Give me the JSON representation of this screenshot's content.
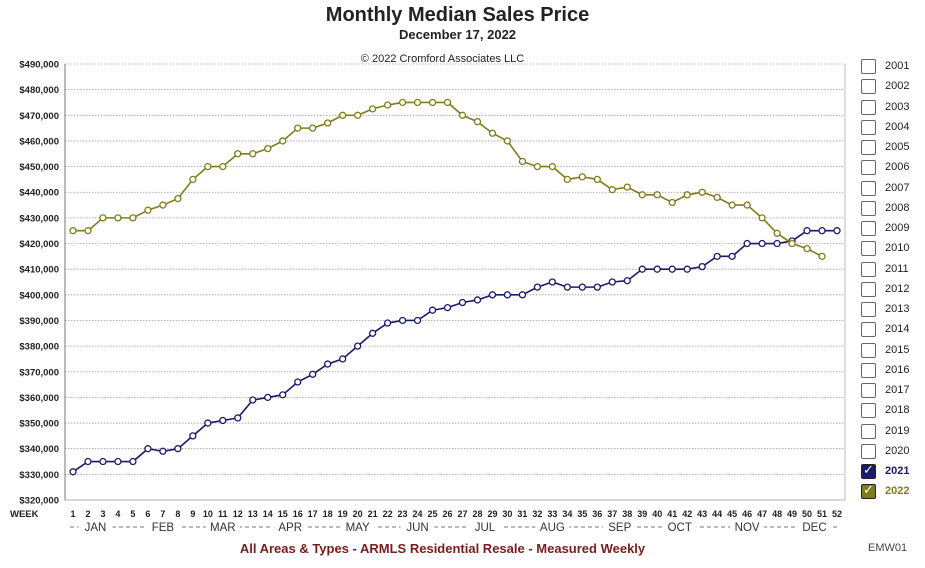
{
  "header": {
    "title": "Monthly Median Sales Price",
    "date": "December 17, 2022",
    "copyright": "© 2022 Cromford Associates LLC"
  },
  "footer": {
    "text": "All Areas & Types - ARMLS Residential Resale - Measured Weekly",
    "code": "EMW01"
  },
  "legend": {
    "items": [
      {
        "label": "2001",
        "checked": false
      },
      {
        "label": "2002",
        "checked": false
      },
      {
        "label": "2003",
        "checked": false
      },
      {
        "label": "2004",
        "checked": false
      },
      {
        "label": "2005",
        "checked": false
      },
      {
        "label": "2006",
        "checked": false
      },
      {
        "label": "2007",
        "checked": false
      },
      {
        "label": "2008",
        "checked": false
      },
      {
        "label": "2009",
        "checked": false
      },
      {
        "label": "2010",
        "checked": false
      },
      {
        "label": "2011",
        "checked": false
      },
      {
        "label": "2012",
        "checked": false
      },
      {
        "label": "2013",
        "checked": false
      },
      {
        "label": "2014",
        "checked": false
      },
      {
        "label": "2015",
        "checked": false
      },
      {
        "label": "2016",
        "checked": false
      },
      {
        "label": "2017",
        "checked": false
      },
      {
        "label": "2018",
        "checked": false
      },
      {
        "label": "2019",
        "checked": false
      },
      {
        "label": "2020",
        "checked": false
      },
      {
        "label": "2021",
        "checked": true,
        "color": "#1a1a6b"
      },
      {
        "label": "2022",
        "checked": true,
        "color": "#7d7d1a"
      }
    ]
  },
  "chart_data": {
    "type": "line",
    "title": "Monthly Median Sales Price",
    "subtitle": "December 17, 2022",
    "xlabel": "WEEK",
    "ylabel": "",
    "ylim": [
      320000,
      490000
    ],
    "yticks": [
      320000,
      330000,
      340000,
      350000,
      360000,
      370000,
      380000,
      390000,
      400000,
      410000,
      420000,
      430000,
      440000,
      450000,
      460000,
      470000,
      480000,
      490000
    ],
    "ytick_labels": [
      "$320,000",
      "$330,000",
      "$340,000",
      "$350,000",
      "$360,000",
      "$370,000",
      "$380,000",
      "$390,000",
      "$400,000",
      "$410,000",
      "$420,000",
      "$430,000",
      "$440,000",
      "$450,000",
      "$460,000",
      "$470,000",
      "$480,000",
      "$490,000"
    ],
    "x": [
      1,
      2,
      3,
      4,
      5,
      6,
      7,
      8,
      9,
      10,
      11,
      12,
      13,
      14,
      15,
      16,
      17,
      18,
      19,
      20,
      21,
      22,
      23,
      24,
      25,
      26,
      27,
      28,
      29,
      30,
      31,
      32,
      33,
      34,
      35,
      36,
      37,
      38,
      39,
      40,
      41,
      42,
      43,
      44,
      45,
      46,
      47,
      48,
      49,
      50,
      51,
      52
    ],
    "month_labels": [
      {
        "label": "JAN",
        "week": 2.5
      },
      {
        "label": "FEB",
        "week": 7
      },
      {
        "label": "MAR",
        "week": 11
      },
      {
        "label": "APR",
        "week": 15.5
      },
      {
        "label": "MAY",
        "week": 20
      },
      {
        "label": "JUN",
        "week": 24
      },
      {
        "label": "JUL",
        "week": 28.5
      },
      {
        "label": "AUG",
        "week": 33
      },
      {
        "label": "SEP",
        "week": 37.5
      },
      {
        "label": "OCT",
        "week": 41.5
      },
      {
        "label": "NOV",
        "week": 46
      },
      {
        "label": "DEC",
        "week": 50.5
      }
    ],
    "grid": true,
    "legend_position": "right",
    "series": [
      {
        "name": "2021",
        "color": "#1a1a6b",
        "values": [
          331000,
          335000,
          335000,
          335000,
          335000,
          340000,
          339000,
          340000,
          345000,
          350000,
          351000,
          352000,
          359000,
          360000,
          361000,
          366000,
          369000,
          373000,
          375000,
          380000,
          385000,
          389000,
          390000,
          390000,
          394000,
          395000,
          397000,
          398000,
          400000,
          400000,
          400000,
          403000,
          405000,
          403000,
          403000,
          403000,
          405000,
          405500,
          410000,
          410000,
          410000,
          410000,
          411000,
          415000,
          415000,
          420000,
          420000,
          420000,
          421000,
          425000,
          425000,
          425000
        ]
      },
      {
        "name": "2022",
        "color": "#7d7d1a",
        "values": [
          425000,
          425000,
          430000,
          430000,
          430000,
          433000,
          435000,
          437500,
          445000,
          450000,
          450000,
          455000,
          455000,
          457000,
          460000,
          465000,
          465000,
          467000,
          470000,
          470000,
          472500,
          474000,
          475000,
          475000,
          475000,
          475000,
          470000,
          467500,
          463000,
          460000,
          452000,
          450000,
          450000,
          445000,
          446000,
          445000,
          441000,
          442000,
          439000,
          439000,
          436000,
          439000,
          440000,
          438000,
          435000,
          435000,
          430000,
          424000,
          420000,
          418000,
          415000,
          null
        ]
      }
    ]
  }
}
